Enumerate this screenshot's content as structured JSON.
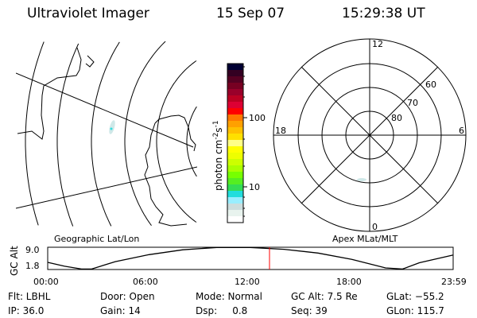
{
  "header": {
    "instrument": "Ultraviolet Imager",
    "date": "15 Sep 07",
    "time": "15:29:38 UT"
  },
  "colorbar": {
    "unit_label": "photon cm",
    "unit_exp1": "-2",
    "unit_s": "s",
    "unit_exp2": "-1",
    "ticks": [
      "100",
      "10"
    ],
    "colors": [
      "#000033",
      "#330022",
      "#550022",
      "#770022",
      "#99002a",
      "#bb0022",
      "#dd0033",
      "#ff0000",
      "#ff7700",
      "#ffa000",
      "#ffc000",
      "#ffe000",
      "#ffff88",
      "#ffff00",
      "#eeff00",
      "#ccff00",
      "#aaff00",
      "#77ff00",
      "#55ee22",
      "#33dd55",
      "#22dddd",
      "#99eeff",
      "#ccdddd",
      "#e8f3ee",
      "#ffffff"
    ]
  },
  "polar": {
    "labels": {
      "top": "12",
      "left": "18",
      "right": "6",
      "bottom": "0"
    },
    "lat_labels": [
      "80",
      "70",
      "60"
    ]
  },
  "map_labels": {
    "left": "Geographic Lat/Lon",
    "right": "Apex MLat/MLT"
  },
  "chart_data": {
    "type": "line",
    "ylabel": "GC Alt",
    "yticks": [
      "9.0",
      "1.8"
    ],
    "xticks": [
      "00:00",
      "06:00",
      "12:00",
      "18:00",
      "23:59"
    ],
    "x_hours": [
      0,
      1,
      2,
      2.6,
      4,
      6,
      8,
      10,
      12,
      14,
      16,
      18,
      20,
      21,
      22,
      23.98
    ],
    "values": [
      3.2,
      1.5,
      0.3,
      0.3,
      3.5,
      6.5,
      8.6,
      9.6,
      9.6,
      8.8,
      7.2,
      4.5,
      0.8,
      0.3,
      3.0,
      6.3
    ],
    "ylim": [
      0.1,
      9.7
    ],
    "marker_color": "#ff0000"
  },
  "status": {
    "row1": [
      "Flt: LBHL",
      "Door: Open",
      "Mode: Normal",
      "GC Alt: 7.5 Re",
      "GLat: −55.2"
    ],
    "row2": [
      "IP: 36.0",
      "Gain: 14",
      "Dsp:     0.8",
      "Seq: 39",
      "GLon: 115.7"
    ]
  }
}
